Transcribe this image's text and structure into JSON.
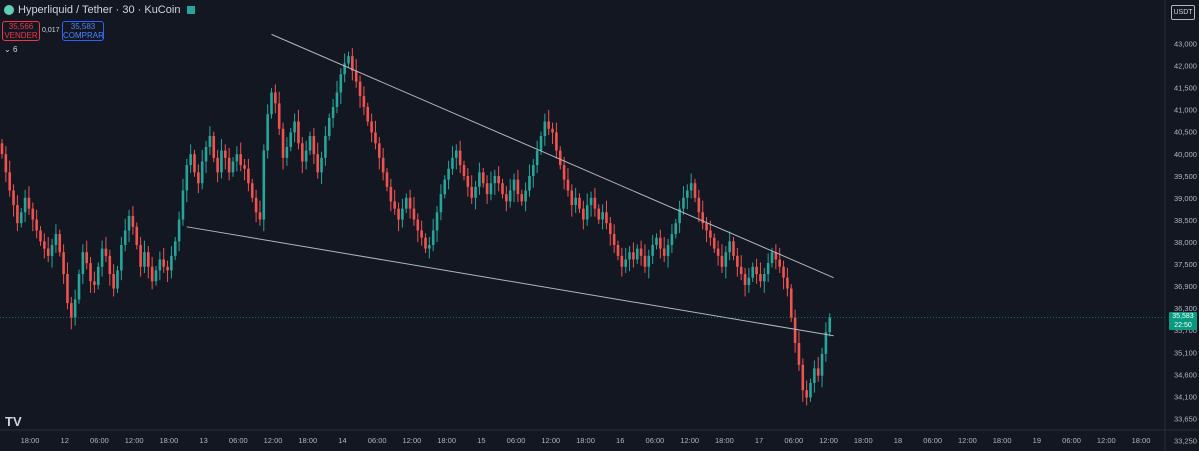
{
  "header": {
    "symbol": "Hyperliquid / Tether · 30 · KuCoin",
    "sell_price": "35,566",
    "sell_label": "VENDER",
    "spread": "0,017",
    "buy_price": "35,583",
    "buy_label": "COMPRAR",
    "indicators_count": "6",
    "currency": "USDT",
    "logo": "TV"
  },
  "last_price": {
    "value": "35,583",
    "countdown": "22:50"
  },
  "colors": {
    "up": "#26a69a",
    "down": "#ef5350",
    "bg": "#131722",
    "badge": "#089981"
  },
  "chart_data": {
    "type": "candlestick",
    "yticks": [
      "43,000",
      "42,000",
      "41,500",
      "41,000",
      "40,500",
      "40,000",
      "39,500",
      "39,000",
      "38,500",
      "38,000",
      "37,500",
      "36,900",
      "36,300",
      "35,700",
      "35,100",
      "34,600",
      "34,100",
      "33,650",
      "33,250"
    ],
    "xticks": [
      "18:00",
      "12",
      "06:00",
      "12:00",
      "18:00",
      "13",
      "06:00",
      "12:00",
      "18:00",
      "14",
      "06:00",
      "12:00",
      "18:00",
      "15",
      "06:00",
      "12:00",
      "18:00",
      "16",
      "06:00",
      "12:00",
      "18:00",
      "17",
      "06:00",
      "12:00",
      "18:00",
      "18",
      "06:00",
      "12:00",
      "18:00",
      "19",
      "06:00",
      "12:00",
      "18:00"
    ],
    "series": [
      {
        "name": "close",
        "values": [
          40.1,
          39.6,
          39.1,
          38.7,
          38.2,
          38.5,
          38.9,
          38.6,
          38.3,
          38.0,
          37.7,
          37.5,
          37.3,
          37.6,
          37.9,
          37.4,
          36.8,
          36.0,
          35.6,
          36.1,
          36.8,
          37.4,
          37.1,
          36.6,
          36.5,
          37.0,
          37.5,
          37.3,
          36.8,
          36.4,
          36.9,
          37.6,
          38.0,
          38.4,
          38.1,
          37.6,
          37.0,
          37.4,
          37.0,
          36.6,
          36.9,
          37.2,
          37.0,
          36.9,
          37.3,
          37.7,
          38.3,
          39.1,
          39.8,
          40.1,
          39.6,
          39.3,
          39.9,
          40.3,
          40.6,
          40.0,
          39.6,
          40.2,
          40.0,
          39.6,
          39.9,
          40.1,
          39.8,
          39.7,
          39.3,
          38.9,
          38.5,
          38.3,
          40.2,
          41.2,
          41.8,
          41.5,
          40.8,
          40.0,
          40.3,
          40.7,
          41.0,
          40.4,
          39.9,
          40.2,
          40.6,
          40.1,
          39.6,
          40.0,
          40.6,
          41.1,
          41.4,
          41.8,
          42.3,
          42.6,
          42.8,
          42.4,
          42.1,
          41.7,
          41.4,
          41.0,
          40.7,
          40.4,
          40.0,
          39.6,
          39.2,
          38.8,
          38.6,
          38.3,
          38.6,
          38.9,
          38.6,
          38.3,
          38.0,
          37.8,
          37.5,
          37.6,
          38.0,
          38.5,
          39.0,
          39.4,
          39.7,
          40.0,
          40.2,
          39.8,
          39.5,
          39.2,
          38.9,
          39.2,
          39.6,
          39.3,
          39.0,
          39.3,
          39.5,
          39.3,
          39.0,
          38.8,
          39.1,
          39.4,
          39.0,
          38.8,
          39.1,
          39.5,
          39.8,
          40.2,
          40.6,
          41.0,
          40.8,
          40.7,
          40.2,
          39.8,
          39.4,
          39.1,
          38.7,
          38.9,
          38.6,
          38.3,
          38.7,
          38.9,
          38.6,
          38.3,
          38.5,
          38.2,
          37.9,
          37.6,
          37.3,
          37.0,
          37.2,
          37.4,
          37.2,
          37.5,
          37.3,
          37.0,
          37.3,
          37.6,
          37.8,
          37.5,
          37.3,
          37.6,
          37.9,
          38.2,
          38.6,
          38.9,
          39.1,
          39.3,
          38.9,
          38.5,
          38.2,
          38.0,
          37.8,
          37.5,
          37.3,
          37.0,
          37.4,
          37.7,
          37.3,
          37.0,
          36.8,
          36.5,
          36.7,
          37.0,
          36.8,
          36.6,
          36.8,
          37.1,
          37.4,
          37.2,
          37.0,
          36.7,
          36.4,
          35.6,
          34.9,
          34.3,
          33.6,
          33.4,
          33.8,
          34.2,
          34.0,
          34.6,
          35.2,
          35.6
        ]
      }
    ],
    "trendlines": [
      {
        "name": "upper",
        "from": {
          "i": 70,
          "y": 43.4
        },
        "to": {
          "i": 216,
          "y": 36.7
        }
      },
      {
        "name": "lower",
        "from": {
          "i": 48,
          "y": 38.1
        },
        "to": {
          "i": 216,
          "y": 35.1
        }
      }
    ],
    "ylim": [
      33.0,
      43.3
    ],
    "title": "",
    "xlabel": "",
    "ylabel": ""
  }
}
